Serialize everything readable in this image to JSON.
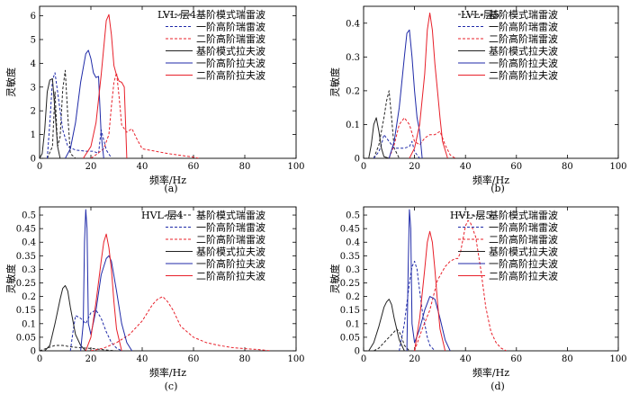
{
  "figure": {
    "legend_labels": [
      "基阶模式瑞雷波",
      "一阶高阶瑞雷波",
      "二阶高阶瑞雷波",
      "基阶模式拉夫波",
      "一阶高阶拉夫波",
      "二阶高阶拉夫波"
    ],
    "series_styles": [
      {
        "color": "#222222",
        "dash": "dashed"
      },
      {
        "color": "#1f2aa8",
        "dash": "dashed"
      },
      {
        "color": "#e8202a",
        "dash": "dashed"
      },
      {
        "color": "#222222",
        "dash": "solid"
      },
      {
        "color": "#1f2aa8",
        "dash": "solid"
      },
      {
        "color": "#e8202a",
        "dash": "solid"
      }
    ]
  },
  "chart_data": [
    {
      "type": "line",
      "title": "LVL-层4",
      "caption": "(a)",
      "xlabel": "频率/Hz",
      "ylabel": "灵敏度",
      "xlim": [
        0,
        100
      ],
      "ylim": [
        0,
        6.4
      ],
      "xticks": [
        0,
        20,
        40,
        60,
        80,
        100
      ],
      "yticks": [
        0,
        1,
        2,
        3,
        4,
        5,
        6
      ],
      "series": [
        {
          "name": "基阶模式瑞雷波",
          "x": [
            3,
            5,
            6,
            7,
            8,
            9,
            10,
            11,
            12,
            14
          ],
          "y": [
            0,
            0.5,
            2.8,
            0.5,
            0.9,
            2.9,
            3.7,
            1.8,
            0.2,
            0
          ]
        },
        {
          "name": "一阶高阶瑞雷波",
          "x": [
            3,
            4,
            5,
            6,
            7,
            9,
            11,
            14,
            18,
            21,
            23,
            24,
            26,
            28
          ],
          "y": [
            0,
            1.5,
            3.3,
            3.6,
            2.8,
            1.2,
            0.5,
            0.35,
            0.3,
            0.3,
            0.2,
            1.2,
            0.35,
            0.02
          ]
        },
        {
          "name": "二阶高阶瑞雷波",
          "x": [
            20,
            22,
            25,
            27,
            28,
            29,
            30,
            31,
            32,
            34,
            36,
            38,
            40,
            50,
            60,
            62
          ],
          "y": [
            0,
            0.15,
            0.4,
            1,
            2.2,
            3.2,
            3.6,
            2.6,
            1.4,
            1.1,
            1.25,
            0.8,
            0.4,
            0.2,
            0.05,
            0
          ]
        },
        {
          "name": "基阶模式拉夫波",
          "x": [
            0,
            1,
            2,
            3,
            4,
            5,
            6,
            7,
            8
          ],
          "y": [
            0,
            0.2,
            1.2,
            2.8,
            3.3,
            3.35,
            2.0,
            0.5,
            0
          ]
        },
        {
          "name": "一阶高阶拉夫波",
          "x": [
            10,
            12,
            14,
            16,
            18,
            19,
            20,
            21,
            22,
            23,
            24,
            25
          ],
          "y": [
            0,
            0.4,
            1.5,
            3.2,
            4.4,
            4.55,
            4.2,
            3.6,
            3.4,
            3.45,
            1.0,
            0
          ]
        },
        {
          "name": "二阶高阶拉夫波",
          "x": [
            17,
            20,
            22,
            24,
            26,
            27,
            28,
            29,
            30,
            31,
            32,
            33,
            34
          ],
          "y": [
            0,
            0.5,
            1.5,
            3.5,
            5.8,
            6.05,
            5.2,
            3.9,
            3.5,
            3.25,
            3.2,
            3.0,
            0
          ]
        }
      ]
    },
    {
      "type": "line",
      "title": "LVL-层5",
      "caption": "(b)",
      "xlabel": "频率/Hz",
      "ylabel": "灵敏度",
      "xlim": [
        0,
        100
      ],
      "ylim": [
        0,
        0.45
      ],
      "xticks": [
        0,
        20,
        40,
        60,
        80,
        100
      ],
      "yticks": [
        0,
        0.1,
        0.2,
        0.3,
        0.4
      ],
      "series": [
        {
          "name": "基阶模式瑞雷波",
          "x": [
            4,
            6,
            8,
            9,
            10,
            11,
            12,
            14
          ],
          "y": [
            0,
            0.04,
            0.12,
            0.17,
            0.2,
            0.12,
            0.03,
            0
          ]
        },
        {
          "name": "一阶高阶瑞雷波",
          "x": [
            4,
            6,
            7,
            8,
            10,
            12,
            14,
            16,
            18,
            19,
            20,
            22
          ],
          "y": [
            0,
            0.02,
            0.04,
            0.07,
            0.05,
            0.03,
            0.03,
            0.03,
            0.035,
            0.05,
            0.02,
            0
          ]
        },
        {
          "name": "二阶高阶瑞雷波",
          "x": [
            10,
            12,
            14,
            16,
            18,
            20,
            22,
            24,
            26,
            28,
            30,
            32,
            34,
            36
          ],
          "y": [
            0,
            0.04,
            0.1,
            0.12,
            0.1,
            0.05,
            0.04,
            0.06,
            0.07,
            0.07,
            0.08,
            0.04,
            0.01,
            0
          ]
        },
        {
          "name": "基阶模式拉夫波",
          "x": [
            2,
            3,
            4,
            5,
            6,
            7,
            8,
            10
          ],
          "y": [
            0,
            0.04,
            0.1,
            0.12,
            0.08,
            0.03,
            0.005,
            0
          ]
        },
        {
          "name": "一阶高阶拉夫波",
          "x": [
            10,
            12,
            14,
            16,
            17,
            18,
            19,
            20,
            21,
            22,
            23
          ],
          "y": [
            0,
            0.05,
            0.15,
            0.3,
            0.37,
            0.38,
            0.3,
            0.2,
            0.12,
            0.08,
            0
          ]
        },
        {
          "name": "二阶高阶拉夫波",
          "x": [
            18,
            20,
            22,
            24,
            25,
            26,
            27,
            28,
            29,
            30,
            31,
            33
          ],
          "y": [
            0,
            0.03,
            0.1,
            0.25,
            0.38,
            0.43,
            0.38,
            0.28,
            0.2,
            0.12,
            0.05,
            0
          ]
        }
      ]
    },
    {
      "type": "line",
      "title": "HVL-层4",
      "caption": "(c)",
      "xlabel": "频率/Hz",
      "ylabel": "灵敏度",
      "xlim": [
        0,
        100
      ],
      "ylim": [
        0,
        0.53
      ],
      "xticks": [
        0,
        20,
        40,
        60,
        80,
        100
      ],
      "yticks": [
        0,
        0.05,
        0.1,
        0.15,
        0.2,
        0.25,
        0.3,
        0.35,
        0.4,
        0.45,
        0.5
      ],
      "series": [
        {
          "name": "基阶模式瑞雷波",
          "x": [
            0,
            3,
            6,
            9,
            12,
            15,
            18,
            21,
            24,
            27,
            30
          ],
          "y": [
            0,
            0.01,
            0.02,
            0.02,
            0.015,
            0.012,
            0.01,
            0.008,
            0.005,
            0.002,
            0
          ]
        },
        {
          "name": "一阶高阶瑞雷波",
          "x": [
            12,
            13,
            14,
            16,
            18,
            20,
            22,
            24,
            26,
            28,
            30,
            32
          ],
          "y": [
            0,
            0.07,
            0.13,
            0.12,
            0.1,
            0.14,
            0.15,
            0.12,
            0.07,
            0.03,
            0.01,
            0
          ]
        },
        {
          "name": "二阶高阶瑞雷波",
          "x": [
            20,
            25,
            30,
            35,
            40,
            44,
            46,
            48,
            50,
            52,
            55,
            60,
            65,
            70,
            75,
            80,
            85,
            90
          ],
          "y": [
            0,
            0.01,
            0.03,
            0.06,
            0.11,
            0.17,
            0.19,
            0.2,
            0.18,
            0.15,
            0.09,
            0.05,
            0.03,
            0.02,
            0.012,
            0.008,
            0.005,
            0
          ]
        },
        {
          "name": "基阶模式拉夫波",
          "x": [
            2,
            4,
            6,
            8,
            9,
            10,
            11,
            12,
            14,
            16,
            18
          ],
          "y": [
            0,
            0.02,
            0.1,
            0.19,
            0.23,
            0.24,
            0.22,
            0.16,
            0.06,
            0.02,
            0
          ]
        },
        {
          "name": "一阶高阶拉夫波",
          "x": [
            16,
            17,
            17.5,
            18,
            18.5,
            19,
            20,
            22,
            24,
            26,
            27,
            28,
            30,
            32,
            34,
            36
          ],
          "y": [
            0,
            0.1,
            0.4,
            0.52,
            0.45,
            0.1,
            0.06,
            0.15,
            0.28,
            0.34,
            0.35,
            0.33,
            0.22,
            0.1,
            0.03,
            0
          ]
        },
        {
          "name": "二阶高阶拉夫波",
          "x": [
            18,
            20,
            22,
            24,
            25,
            26,
            27,
            28,
            29,
            30,
            32
          ],
          "y": [
            0,
            0.05,
            0.18,
            0.33,
            0.4,
            0.43,
            0.38,
            0.3,
            0.18,
            0.08,
            0
          ]
        }
      ]
    },
    {
      "type": "line",
      "title": "HVL-层5",
      "caption": "(d)",
      "xlabel": "频率/Hz",
      "ylabel": "灵敏度",
      "xlim": [
        0,
        100
      ],
      "ylim": [
        0,
        0.53
      ],
      "xticks": [
        0,
        20,
        40,
        60,
        80,
        100
      ],
      "yticks": [
        0,
        0.05,
        0.1,
        0.15,
        0.2,
        0.25,
        0.3,
        0.35,
        0.4,
        0.45,
        0.5
      ],
      "series": [
        {
          "name": "基阶模式瑞雷波",
          "x": [
            4,
            6,
            8,
            10,
            12,
            13,
            14,
            15,
            16,
            18
          ],
          "y": [
            0,
            0.01,
            0.03,
            0.05,
            0.07,
            0.08,
            0.07,
            0.05,
            0.02,
            0
          ]
        },
        {
          "name": "一阶高阶瑞雷波",
          "x": [
            14,
            16,
            18,
            19,
            20,
            21,
            22,
            23,
            24,
            25,
            26,
            28
          ],
          "y": [
            0,
            0.1,
            0.25,
            0.31,
            0.33,
            0.3,
            0.22,
            0.15,
            0.1,
            0.05,
            0.02,
            0
          ]
        },
        {
          "name": "二阶高阶瑞雷波",
          "x": [
            20,
            23,
            26,
            29,
            32,
            34,
            36,
            37,
            38,
            40,
            41,
            42,
            44,
            46,
            48,
            50,
            52,
            54,
            56
          ],
          "y": [
            0,
            0.08,
            0.15,
            0.26,
            0.31,
            0.33,
            0.34,
            0.34,
            0.36,
            0.46,
            0.48,
            0.47,
            0.42,
            0.3,
            0.16,
            0.07,
            0.03,
            0.01,
            0
          ]
        },
        {
          "name": "基阶模式拉夫波",
          "x": [
            2,
            4,
            6,
            8,
            9,
            10,
            11,
            12,
            14,
            16
          ],
          "y": [
            0,
            0.03,
            0.09,
            0.16,
            0.18,
            0.19,
            0.17,
            0.12,
            0.04,
            0
          ]
        },
        {
          "name": "一阶高阶拉夫波",
          "x": [
            17,
            17.5,
            18,
            18.5,
            19,
            20,
            22,
            24,
            26,
            28,
            30,
            32,
            34
          ],
          "y": [
            0,
            0.3,
            0.52,
            0.45,
            0.1,
            0.03,
            0.08,
            0.15,
            0.2,
            0.19,
            0.12,
            0.04,
            0
          ]
        },
        {
          "name": "二阶高阶拉夫波",
          "x": [
            20,
            22,
            24,
            25,
            26,
            27,
            28,
            29,
            30,
            32
          ],
          "y": [
            0,
            0.12,
            0.3,
            0.4,
            0.44,
            0.4,
            0.3,
            0.18,
            0.08,
            0
          ]
        }
      ]
    }
  ]
}
